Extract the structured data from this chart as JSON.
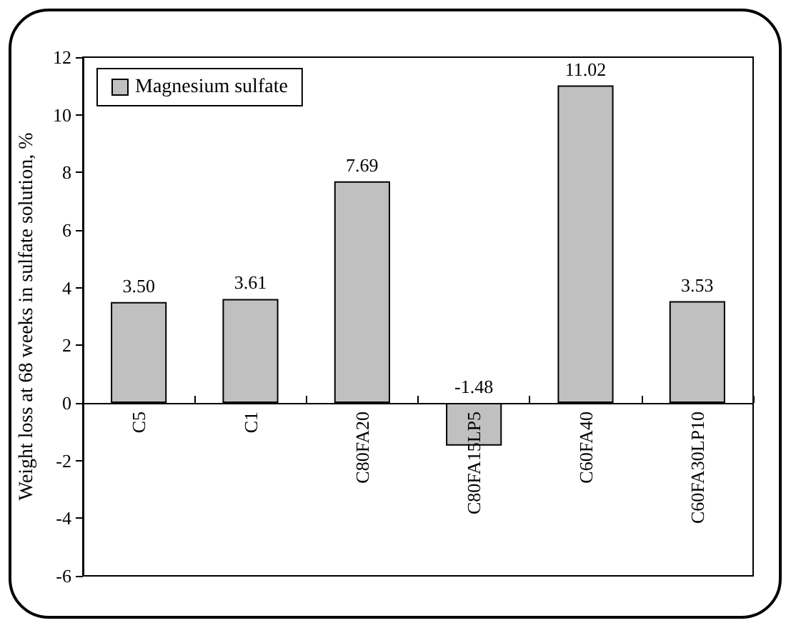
{
  "chart_data": {
    "type": "bar",
    "ylabel": "Weight loss at 68 weeks in sulfate solution, %",
    "categories": [
      "C5",
      "C1",
      "C80FA20",
      "C80FA15LP5",
      "C60FA40",
      "C60FA30LP10"
    ],
    "series": [
      {
        "name": "Magnesium sulfate",
        "color": "#c0c0c0",
        "values": [
          3.5,
          3.61,
          7.69,
          -1.48,
          11.02,
          3.53
        ]
      }
    ],
    "value_labels": [
      "3.50",
      "3.61",
      "7.69",
      "-1.48",
      "11.02",
      "3.53"
    ],
    "ylim": [
      -6,
      12
    ],
    "yticks": [
      -6,
      -4,
      -2,
      0,
      2,
      4,
      6,
      8,
      10,
      12
    ],
    "grid": false,
    "legend": "top left"
  }
}
